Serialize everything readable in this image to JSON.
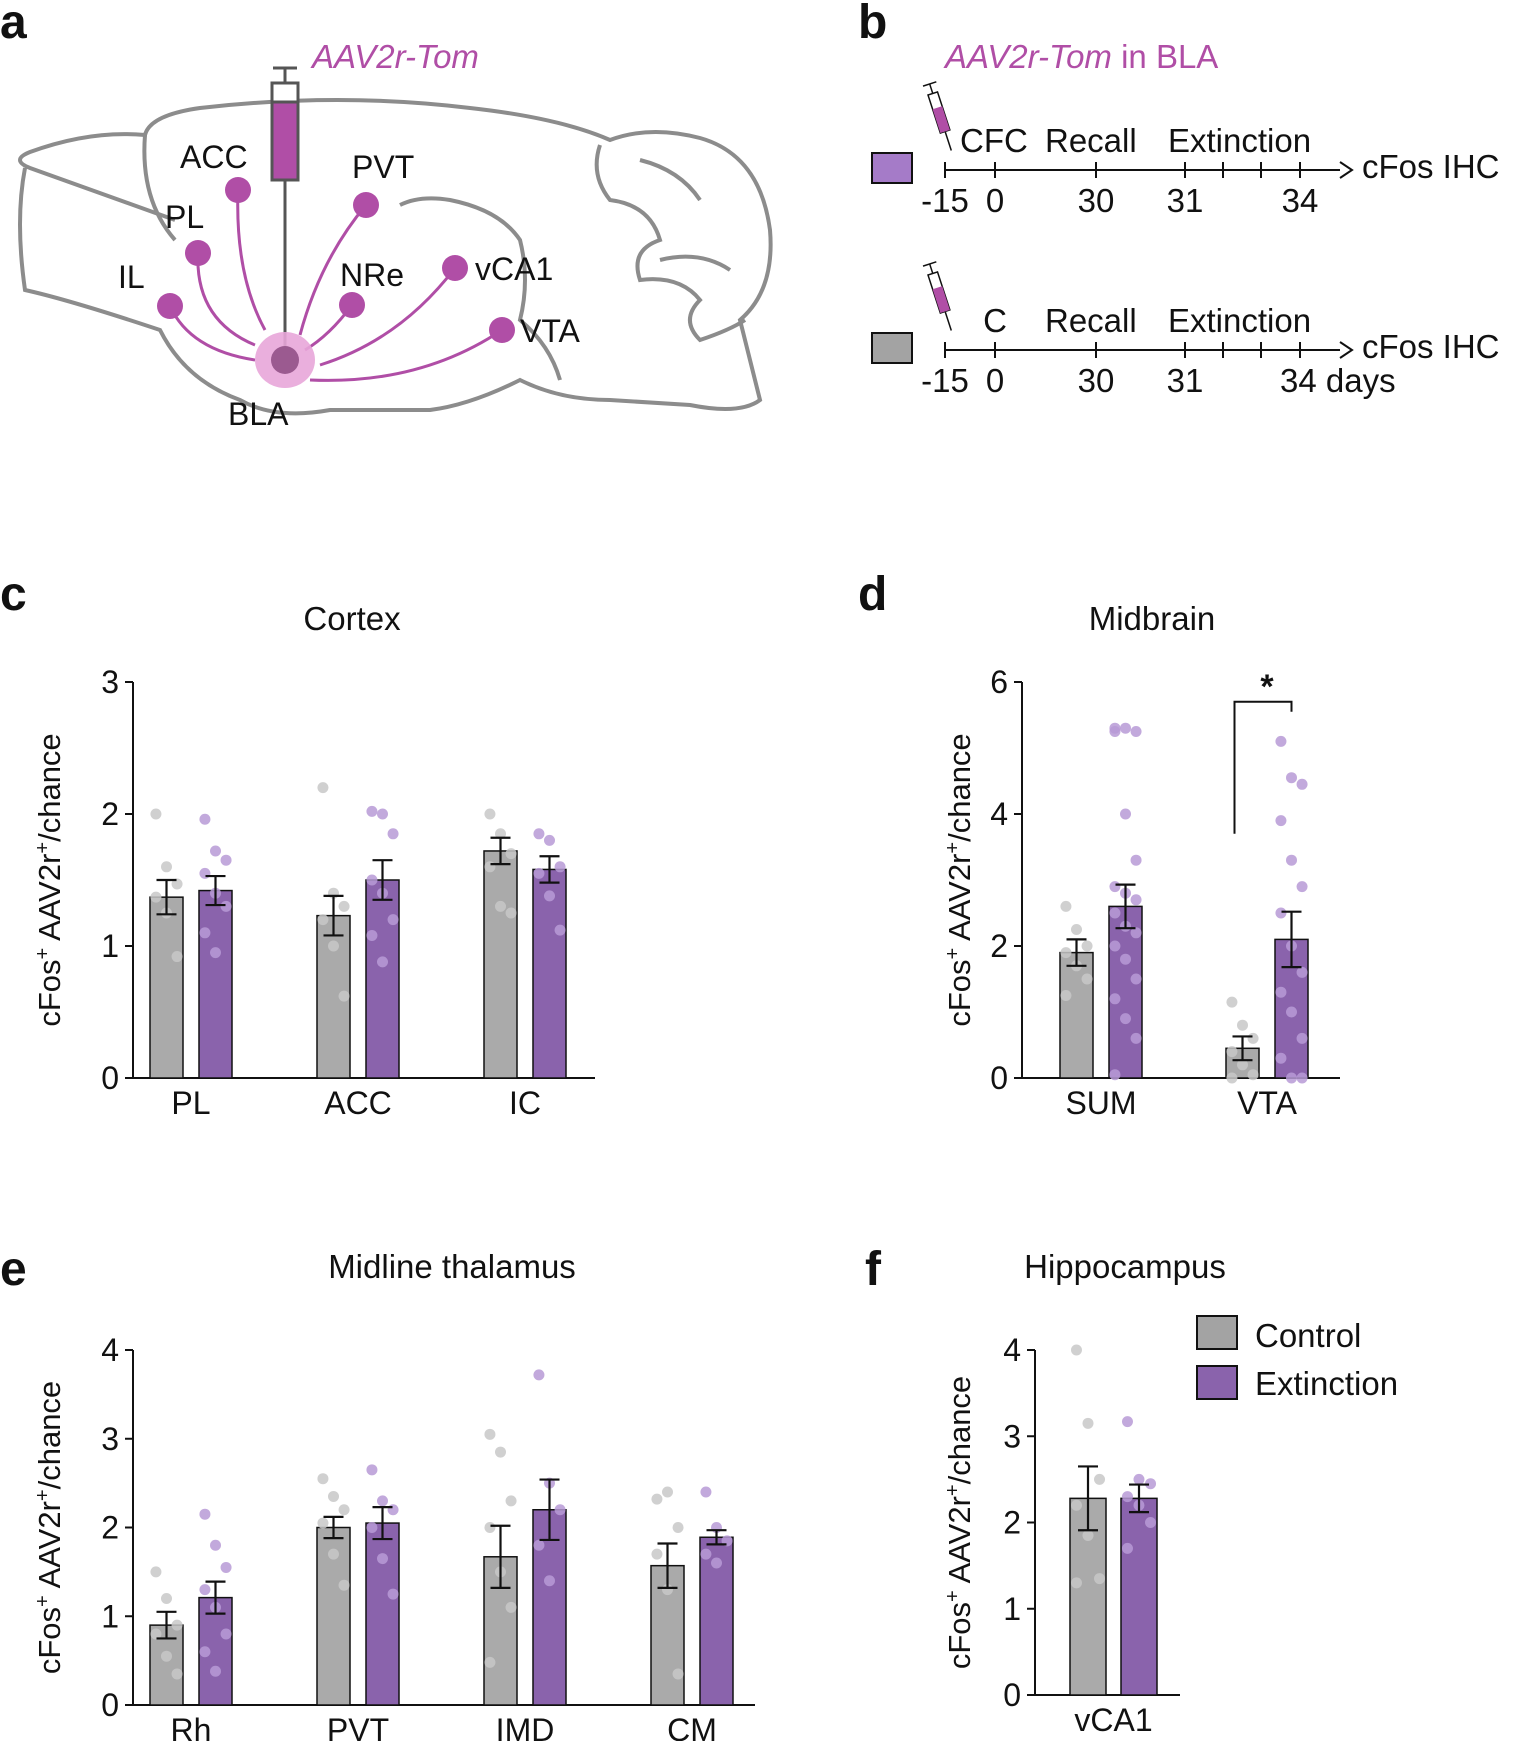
{
  "colors": {
    "control_bar": "#aaaaaa",
    "extinction_bar": "#8a63ac",
    "control_dot": "#c8c8c8",
    "extinction_dot": "#b79ad6",
    "accent_magenta": "#b04ea6",
    "brain_outline": "#8c8c8c",
    "timeline_box_purple": "#a57bc8",
    "timeline_box_gray": "#a3a3a3"
  },
  "panel_labels": {
    "a": "a",
    "b": "b",
    "c": "c",
    "d": "d",
    "e": "e",
    "f": "f"
  },
  "panel_a": {
    "virus": "AAV2r-Tom",
    "regions": [
      "ACC",
      "PVT",
      "PL",
      "IL",
      "NRe",
      "vCA1",
      "VTA",
      "BLA"
    ]
  },
  "panel_b": {
    "title_virus": "AAV2r-Tom",
    "title_suffix": " in BLA",
    "timeline1": {
      "events": [
        "CFC",
        "Recall",
        "Extinction"
      ],
      "end": "cFos IHC",
      "days": [
        "-15",
        "0",
        "30",
        "31",
        "34"
      ]
    },
    "timeline2": {
      "events": [
        "C",
        "Recall",
        "Extinction"
      ],
      "end": "cFos IHC",
      "days": [
        "-15",
        "0",
        "30",
        "31",
        "34 days"
      ]
    }
  },
  "legend": {
    "control": "Control",
    "extinction": "Extinction"
  },
  "y_label_prefix": "cFos",
  "y_label_middle": " AAV2r",
  "y_label_suffix": "/chance",
  "y_label_sup": "+",
  "chart_data": [
    {
      "id": "c",
      "type": "bar",
      "title": "Cortex",
      "categories": [
        "PL",
        "ACC",
        "IC"
      ],
      "ylim": [
        0,
        3
      ],
      "yticks": [
        0,
        1,
        2,
        3
      ],
      "series": [
        {
          "name": "Control",
          "values": [
            1.37,
            1.23,
            1.72
          ],
          "sem": [
            0.13,
            0.15,
            0.1
          ],
          "points": [
            [
              2.0,
              1.6,
              1.47,
              1.37,
              1.25,
              0.92
            ],
            [
              2.2,
              1.4,
              1.3,
              1.2,
              1.0,
              0.62
            ],
            [
              2.0,
              1.85,
              1.7,
              1.6,
              1.3,
              1.25
            ]
          ]
        },
        {
          "name": "Extinction",
          "values": [
            1.42,
            1.5,
            1.58
          ],
          "sem": [
            0.11,
            0.15,
            0.1
          ],
          "points": [
            [
              1.96,
              1.72,
              1.65,
              1.55,
              1.4,
              1.3,
              1.1,
              0.95
            ],
            [
              2.02,
              2.0,
              1.85,
              1.5,
              1.4,
              1.2,
              1.08,
              0.88
            ],
            [
              1.85,
              1.8,
              1.6,
              1.55,
              1.38,
              1.12
            ]
          ]
        }
      ],
      "significance": null
    },
    {
      "id": "d",
      "type": "bar",
      "title": "Midbrain",
      "categories": [
        "SUM",
        "VTA"
      ],
      "ylim": [
        0,
        6
      ],
      "yticks": [
        0,
        2,
        4,
        6
      ],
      "series": [
        {
          "name": "Control",
          "values": [
            1.9,
            0.45
          ],
          "sem": [
            0.2,
            0.18
          ],
          "points": [
            [
              2.6,
              2.25,
              2.0,
              1.9,
              1.7,
              1.5,
              1.25
            ],
            [
              1.15,
              0.8,
              0.6,
              0.4,
              0.2,
              0.05,
              0.0
            ]
          ]
        },
        {
          "name": "Extinction",
          "values": [
            2.6,
            2.1
          ],
          "sem": [
            0.33,
            0.42
          ],
          "points": [
            [
              5.3,
              5.3,
              5.25,
              5.25,
              4.0,
              3.3,
              2.9,
              2.8,
              2.7,
              2.5,
              2.3,
              2.2,
              2.0,
              1.8,
              1.5,
              1.2,
              0.9,
              0.6,
              0.05
            ],
            [
              5.1,
              4.55,
              4.45,
              3.9,
              3.3,
              2.9,
              2.5,
              2.0,
              1.6,
              1.3,
              1.0,
              0.6,
              0.3,
              0.0,
              0.0
            ]
          ]
        }
      ],
      "significance": {
        "label": "*",
        "category_index": 1,
        "y_top": 5.7
      }
    },
    {
      "id": "e",
      "type": "bar",
      "title": "Midline thalamus",
      "categories": [
        "Rh",
        "PVT",
        "IMD",
        "CM"
      ],
      "ylim": [
        0,
        4
      ],
      "yticks": [
        0,
        1,
        2,
        3,
        4
      ],
      "series": [
        {
          "name": "Control",
          "values": [
            0.9,
            2.0,
            1.67,
            1.57
          ],
          "sem": [
            0.15,
            0.12,
            0.35,
            0.25
          ],
          "points": [
            [
              1.5,
              1.2,
              0.9,
              0.8,
              0.55,
              0.35
            ],
            [
              2.55,
              2.35,
              2.2,
              2.05,
              1.7,
              1.35
            ],
            [
              3.05,
              2.85,
              2.3,
              2.0,
              1.5,
              1.1,
              0.48
            ],
            [
              2.32,
              2.4,
              2.0,
              1.7,
              1.3,
              0.35
            ]
          ]
        },
        {
          "name": "Extinction",
          "values": [
            1.21,
            2.05,
            2.2,
            1.89
          ],
          "sem": [
            0.18,
            0.18,
            0.34,
            0.08
          ],
          "points": [
            [
              2.15,
              1.8,
              1.55,
              1.3,
              1.1,
              0.8,
              0.6,
              0.38
            ],
            [
              2.65,
              2.3,
              2.2,
              2.0,
              1.65,
              1.25
            ],
            [
              3.72,
              2.5,
              2.2,
              1.8,
              1.4
            ],
            [
              2.4,
              2.0,
              1.85,
              1.7,
              1.6
            ]
          ]
        }
      ],
      "significance": null
    },
    {
      "id": "f",
      "type": "bar",
      "title": "Hippocampus",
      "categories": [
        "vCA1"
      ],
      "ylim": [
        0,
        4
      ],
      "yticks": [
        0,
        1,
        2,
        3,
        4
      ],
      "series": [
        {
          "name": "Control",
          "values": [
            2.28
          ],
          "sem": [
            0.37
          ],
          "points": [
            [
              4.0,
              3.15,
              2.5,
              2.2,
              1.85,
              1.35,
              1.3
            ]
          ]
        },
        {
          "name": "Extinction",
          "values": [
            2.28
          ],
          "sem": [
            0.16
          ],
          "points": [
            [
              3.17,
              2.5,
              2.45,
              2.3,
              2.2,
              2.0,
              1.7
            ]
          ]
        }
      ],
      "significance": null
    }
  ]
}
